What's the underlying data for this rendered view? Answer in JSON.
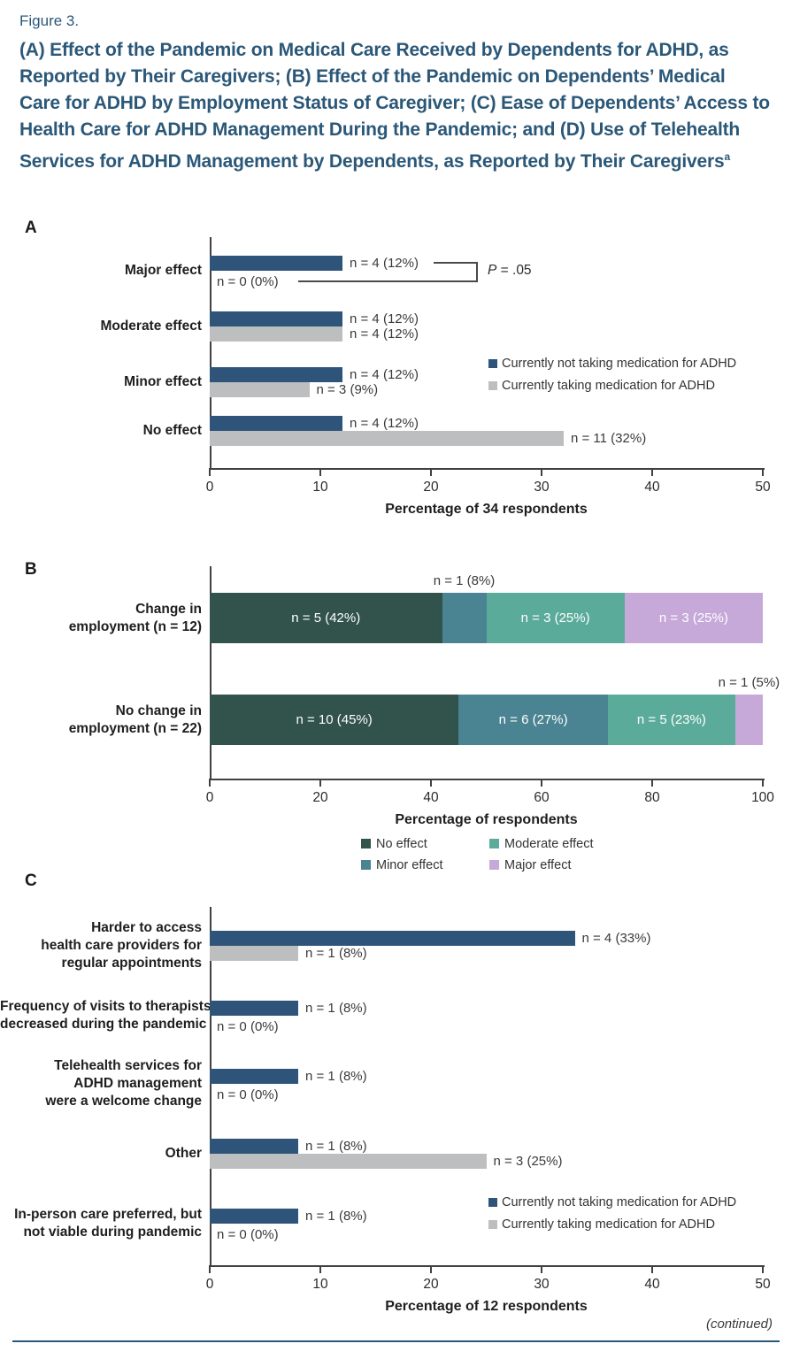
{
  "figure_label": "Figure 3.",
  "title": "(A) Effect of the Pandemic on Medical Care Received by Dependents for ADHD, as Reported by Their Caregivers; (B) Effect of the Pandemic on Dependents’ Medical Care for ADHD by Employment Status of Caregiver; (C) Ease of Dependents’ Access to Health Care for ADHD Management During the Pandemic; and (D) Use of Telehealth Services for ADHD Management by Dependents, as Reported by Their Caregivers",
  "title_superscript": "a",
  "footer": {
    "continued": "(continued)"
  },
  "colors": {
    "title": "#2b5878",
    "navy_bar": "#2f5479",
    "gray_bar": "#bdbebf",
    "no_effect": "#31534b",
    "minor_effect": "#4a8391",
    "moderate_effect": "#5bab9a",
    "major_effect": "#c7a9d9",
    "axis": "#414042",
    "rule": "#2b5878"
  },
  "medication_legend": [
    {
      "label": "Currently not taking medication for ADHD",
      "color_key": "navy_bar"
    },
    {
      "label": "Currently taking medication for ADHD",
      "color_key": "gray_bar"
    }
  ],
  "chart_data": [
    {
      "panel": "A",
      "type": "bar",
      "xlabel": "Percentage of 34 respondents",
      "xlim": [
        0,
        50
      ],
      "xticks": [
        0,
        10,
        20,
        30,
        40,
        50
      ],
      "series": [
        "Currently not taking medication for ADHD",
        "Currently taking medication for ADHD"
      ],
      "annotation": "P = .05",
      "rows": [
        {
          "category": [
            "Major effect"
          ],
          "values_pct": [
            12,
            0
          ],
          "counts": [
            4,
            0
          ],
          "labels": [
            "n = 4 (12%)",
            "n = 0 (0%)"
          ]
        },
        {
          "category": [
            "Moderate effect"
          ],
          "values_pct": [
            12,
            12
          ],
          "counts": [
            4,
            4
          ],
          "labels": [
            "n = 4 (12%)",
            "n = 4 (12%)"
          ]
        },
        {
          "category": [
            "Minor effect"
          ],
          "values_pct": [
            12,
            9
          ],
          "counts": [
            4,
            3
          ],
          "labels": [
            "n = 4 (12%)",
            "n = 3 (9%)"
          ]
        },
        {
          "category": [
            "No effect"
          ],
          "values_pct": [
            12,
            32
          ],
          "counts": [
            4,
            11
          ],
          "labels": [
            "n = 4 (12%)",
            "n = 11 (32%)"
          ]
        }
      ]
    },
    {
      "panel": "B",
      "type": "stacked-bar",
      "xlabel": "Percentage of respondents",
      "xlim": [
        0,
        100
      ],
      "xticks": [
        0,
        20,
        40,
        60,
        80,
        100
      ],
      "series": [
        {
          "name": "No effect",
          "color_key": "no_effect"
        },
        {
          "name": "Minor effect",
          "color_key": "minor_effect"
        },
        {
          "name": "Moderate effect",
          "color_key": "moderate_effect"
        },
        {
          "name": "Major effect",
          "color_key": "major_effect"
        }
      ],
      "rows": [
        {
          "category": [
            "Change in",
            "employment (n = 12)"
          ],
          "segments": [
            {
              "series": "No effect",
              "pct": 42,
              "count": 5,
              "label": "n = 5 (42%)",
              "label_pos": "inside"
            },
            {
              "series": "Minor effect",
              "pct": 8,
              "count": 1,
              "label": "n = 1 (8%)",
              "label_pos": "above"
            },
            {
              "series": "Moderate effect",
              "pct": 25,
              "count": 3,
              "label": "n = 3 (25%)",
              "label_pos": "inside"
            },
            {
              "series": "Major effect",
              "pct": 25,
              "count": 3,
              "label": "n = 3 (25%)",
              "label_pos": "inside"
            }
          ]
        },
        {
          "category": [
            "No change in",
            "employment (n = 22)"
          ],
          "segments": [
            {
              "series": "No effect",
              "pct": 45,
              "count": 10,
              "label": "n = 10 (45%)",
              "label_pos": "inside"
            },
            {
              "series": "Minor effect",
              "pct": 27,
              "count": 6,
              "label": "n = 6 (27%)",
              "label_pos": "inside"
            },
            {
              "series": "Moderate effect",
              "pct": 23,
              "count": 5,
              "label": "n = 5 (23%)",
              "label_pos": "inside"
            },
            {
              "series": "Major effect",
              "pct": 5,
              "count": 1,
              "label": "n = 1 (5%)",
              "label_pos": "above"
            }
          ]
        }
      ]
    },
    {
      "panel": "C",
      "type": "bar",
      "xlabel": "Percentage of 12 respondents",
      "xlim": [
        0,
        50
      ],
      "xticks": [
        0,
        10,
        20,
        30,
        40,
        50
      ],
      "series": [
        "Currently not taking medication for ADHD",
        "Currently taking medication for ADHD"
      ],
      "rows": [
        {
          "category": [
            "Harder to access",
            "health care providers for",
            "regular appointments"
          ],
          "values_pct": [
            33,
            8
          ],
          "counts": [
            4,
            1
          ],
          "labels": [
            "n = 4 (33%)",
            "n = 1 (8%)"
          ]
        },
        {
          "category": [
            "Frequency of visits to therapists",
            "decreased during the pandemic"
          ],
          "values_pct": [
            8,
            0
          ],
          "counts": [
            1,
            0
          ],
          "labels": [
            "n = 1 (8%)",
            "n = 0 (0%)"
          ]
        },
        {
          "category": [
            "Telehealth services for",
            "ADHD management",
            "were a welcome change"
          ],
          "values_pct": [
            8,
            0
          ],
          "counts": [
            1,
            0
          ],
          "labels": [
            "n = 1 (8%)",
            "n = 0 (0%)"
          ]
        },
        {
          "category": [
            "Other"
          ],
          "values_pct": [
            8,
            25
          ],
          "counts": [
            1,
            3
          ],
          "labels": [
            "n = 1 (8%)",
            "n = 3 (25%)"
          ]
        },
        {
          "category": [
            "In-person care preferred, but",
            "not viable during pandemic"
          ],
          "values_pct": [
            8,
            0
          ],
          "counts": [
            1,
            0
          ],
          "labels": [
            "n = 1 (8%)",
            "n = 0 (0%)"
          ]
        }
      ]
    }
  ]
}
